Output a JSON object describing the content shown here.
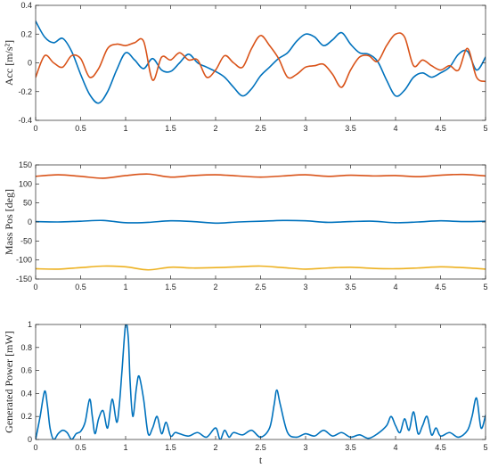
{
  "colors": {
    "blue": "#0072BD",
    "orange": "#D95319",
    "yellow": "#EDB120",
    "axis": "#262626"
  },
  "chart_data": [
    {
      "type": "line",
      "title": "",
      "xlabel": "",
      "ylabel": "Acc [m/s²]",
      "xlim": [
        0,
        5
      ],
      "ylim": [
        -0.4,
        0.4
      ],
      "xticks": [
        0,
        0.5,
        1,
        1.5,
        2,
        2.5,
        3,
        3.5,
        4,
        4.5,
        5
      ],
      "xtick_labels": [
        "0",
        "0.5",
        "1",
        "1.5",
        "2",
        "2.5",
        "3",
        "3.5",
        "4",
        "4.5",
        "5"
      ],
      "yticks": [
        -0.4,
        -0.2,
        0,
        0.2,
        0.4
      ],
      "ytick_labels": [
        "-0.4",
        "-0.2",
        "0",
        "0.2",
        "0.4"
      ],
      "grid": false,
      "series": [
        {
          "color": "#0072BD",
          "x": [
            0,
            0.1,
            0.2,
            0.3,
            0.4,
            0.5,
            0.6,
            0.7,
            0.8,
            0.9,
            1.0,
            1.1,
            1.2,
            1.3,
            1.4,
            1.5,
            1.6,
            1.7,
            1.8,
            1.9,
            2.0,
            2.1,
            2.2,
            2.3,
            2.4,
            2.5,
            2.6,
            2.7,
            2.8,
            2.9,
            3.0,
            3.1,
            3.2,
            3.3,
            3.4,
            3.5,
            3.6,
            3.7,
            3.8,
            3.9,
            4.0,
            4.1,
            4.2,
            4.3,
            4.4,
            4.5,
            4.6,
            4.7,
            4.8,
            4.9,
            5.0
          ],
          "y": [
            0.29,
            0.18,
            0.14,
            0.17,
            0.08,
            -0.08,
            -0.22,
            -0.28,
            -0.2,
            -0.05,
            0.07,
            0.02,
            -0.04,
            0.03,
            -0.05,
            -0.06,
            0.0,
            0.06,
            0.0,
            -0.03,
            -0.06,
            -0.1,
            -0.17,
            -0.23,
            -0.18,
            -0.09,
            -0.03,
            0.03,
            0.07,
            0.15,
            0.2,
            0.18,
            0.12,
            0.16,
            0.21,
            0.13,
            0.07,
            0.06,
            0.01,
            -0.12,
            -0.23,
            -0.19,
            -0.1,
            -0.07,
            -0.1,
            -0.07,
            -0.03,
            0.06,
            0.08,
            -0.05,
            0.04
          ]
        },
        {
          "color": "#D95319",
          "x": [
            0,
            0.1,
            0.2,
            0.3,
            0.4,
            0.5,
            0.6,
            0.7,
            0.8,
            0.9,
            1.0,
            1.1,
            1.2,
            1.3,
            1.4,
            1.5,
            1.6,
            1.7,
            1.8,
            1.9,
            2.0,
            2.1,
            2.2,
            2.3,
            2.4,
            2.5,
            2.6,
            2.7,
            2.8,
            2.9,
            3.0,
            3.1,
            3.2,
            3.3,
            3.4,
            3.5,
            3.6,
            3.7,
            3.8,
            3.9,
            4.0,
            4.1,
            4.2,
            4.3,
            4.4,
            4.5,
            4.6,
            4.7,
            4.8,
            4.9,
            5.0
          ],
          "y": [
            -0.1,
            0.05,
            0.0,
            -0.03,
            0.05,
            0.03,
            -0.1,
            -0.04,
            0.1,
            0.13,
            0.12,
            0.14,
            0.15,
            -0.12,
            0.04,
            0.02,
            0.07,
            0.02,
            0.02,
            -0.1,
            -0.05,
            0.05,
            0.0,
            -0.03,
            0.1,
            0.19,
            0.12,
            0.03,
            -0.1,
            -0.08,
            -0.03,
            -0.02,
            -0.01,
            -0.08,
            -0.17,
            -0.05,
            0.04,
            0.05,
            0.01,
            0.12,
            0.2,
            0.18,
            -0.02,
            0.02,
            -0.02,
            -0.05,
            -0.02,
            -0.05,
            0.1,
            -0.1,
            -0.13
          ]
        }
      ]
    },
    {
      "type": "line",
      "title": "",
      "xlabel": "",
      "ylabel": "Mass Pos [deg]",
      "xlim": [
        0,
        5
      ],
      "ylim": [
        -150,
        150
      ],
      "xticks": [
        0,
        0.5,
        1,
        1.5,
        2,
        2.5,
        3,
        3.5,
        4,
        4.5,
        5
      ],
      "xtick_labels": [
        "0",
        "0.5",
        "1",
        "1.5",
        "2",
        "2.5",
        "3",
        "3.5",
        "4",
        "4.5",
        "5"
      ],
      "yticks": [
        -150,
        -100,
        -50,
        0,
        50,
        100,
        150
      ],
      "ytick_labels": [
        "-150",
        "-100",
        "-50",
        "0",
        "50",
        "100",
        "150"
      ],
      "grid": false,
      "series": [
        {
          "color": "#D95319",
          "x": [
            0,
            0.25,
            0.5,
            0.75,
            1.0,
            1.25,
            1.5,
            1.75,
            2.0,
            2.25,
            2.5,
            2.75,
            3.0,
            3.25,
            3.5,
            3.75,
            4.0,
            4.25,
            4.5,
            4.75,
            5.0
          ],
          "y": [
            120,
            124,
            120,
            115,
            122,
            126,
            118,
            122,
            124,
            121,
            118,
            121,
            124,
            120,
            123,
            121,
            122,
            119,
            123,
            125,
            121
          ]
        },
        {
          "color": "#0072BD",
          "x": [
            0,
            0.25,
            0.5,
            0.75,
            1.0,
            1.25,
            1.5,
            1.75,
            2.0,
            2.25,
            2.5,
            2.75,
            3.0,
            3.25,
            3.5,
            3.75,
            4.0,
            4.25,
            4.5,
            4.75,
            5.0
          ],
          "y": [
            1,
            0,
            2,
            4,
            -2,
            -1,
            3,
            1,
            -3,
            0,
            2,
            4,
            3,
            -1,
            1,
            2,
            -2,
            0,
            3,
            1,
            2
          ]
        },
        {
          "color": "#EDB120",
          "x": [
            0,
            0.25,
            0.5,
            0.75,
            1.0,
            1.25,
            1.5,
            1.75,
            2.0,
            2.25,
            2.5,
            2.75,
            3.0,
            3.25,
            3.5,
            3.75,
            4.0,
            4.25,
            4.5,
            4.75,
            5.0
          ],
          "y": [
            -123,
            -124,
            -120,
            -116,
            -118,
            -126,
            -119,
            -121,
            -120,
            -118,
            -116,
            -120,
            -124,
            -121,
            -119,
            -122,
            -123,
            -121,
            -118,
            -120,
            -124
          ]
        }
      ]
    },
    {
      "type": "line",
      "title": "",
      "xlabel": "t",
      "ylabel": "Generated Power [mW]",
      "xlim": [
        0,
        5
      ],
      "ylim": [
        0,
        1
      ],
      "xticks": [
        0,
        0.5,
        1,
        1.5,
        2,
        2.5,
        3,
        3.5,
        4,
        4.5,
        5
      ],
      "xtick_labels": [
        "0",
        "0.5",
        "1",
        "1.5",
        "2",
        "2.5",
        "3",
        "3.5",
        "4",
        "4.5",
        "5"
      ],
      "yticks": [
        0,
        0.2,
        0.4,
        0.6,
        0.8,
        1
      ],
      "ytick_labels": [
        "0",
        "0.2",
        "0.4",
        "0.6",
        "0.8",
        "1"
      ],
      "grid": false,
      "series": [
        {
          "color": "#0072BD",
          "x": [
            0,
            0.05,
            0.1,
            0.13,
            0.16,
            0.2,
            0.25,
            0.3,
            0.35,
            0.4,
            0.45,
            0.5,
            0.55,
            0.6,
            0.63,
            0.66,
            0.7,
            0.75,
            0.8,
            0.85,
            0.9,
            0.93,
            0.96,
            1.0,
            1.03,
            1.05,
            1.08,
            1.12,
            1.15,
            1.2,
            1.25,
            1.3,
            1.35,
            1.4,
            1.45,
            1.5,
            1.55,
            1.6,
            1.7,
            1.8,
            1.9,
            2.0,
            2.05,
            2.1,
            2.15,
            2.2,
            2.3,
            2.4,
            2.5,
            2.6,
            2.65,
            2.68,
            2.72,
            2.8,
            2.9,
            3.0,
            3.1,
            3.2,
            3.3,
            3.4,
            3.5,
            3.6,
            3.7,
            3.8,
            3.9,
            3.95,
            4.0,
            4.05,
            4.1,
            4.15,
            4.2,
            4.25,
            4.3,
            4.35,
            4.4,
            4.45,
            4.5,
            4.6,
            4.7,
            4.8,
            4.85,
            4.9,
            4.95,
            5.0
          ],
          "y": [
            0.0,
            0.2,
            0.42,
            0.3,
            0.1,
            0.0,
            0.05,
            0.08,
            0.06,
            0.0,
            0.05,
            0.07,
            0.15,
            0.35,
            0.2,
            0.05,
            0.18,
            0.25,
            0.1,
            0.35,
            0.15,
            0.3,
            0.6,
            1.0,
            0.88,
            0.5,
            0.2,
            0.45,
            0.55,
            0.35,
            0.05,
            0.1,
            0.2,
            0.05,
            0.15,
            0.03,
            0.06,
            0.05,
            0.03,
            0.06,
            0.02,
            0.1,
            0.0,
            0.08,
            0.02,
            0.06,
            0.04,
            0.08,
            0.02,
            0.1,
            0.3,
            0.43,
            0.3,
            0.06,
            0.02,
            0.05,
            0.03,
            0.08,
            0.03,
            0.06,
            0.02,
            0.04,
            0.01,
            0.05,
            0.12,
            0.2,
            0.12,
            0.06,
            0.18,
            0.08,
            0.24,
            0.05,
            0.12,
            0.2,
            0.04,
            0.1,
            0.03,
            0.06,
            0.02,
            0.08,
            0.2,
            0.36,
            0.1,
            0.21
          ]
        }
      ]
    }
  ]
}
